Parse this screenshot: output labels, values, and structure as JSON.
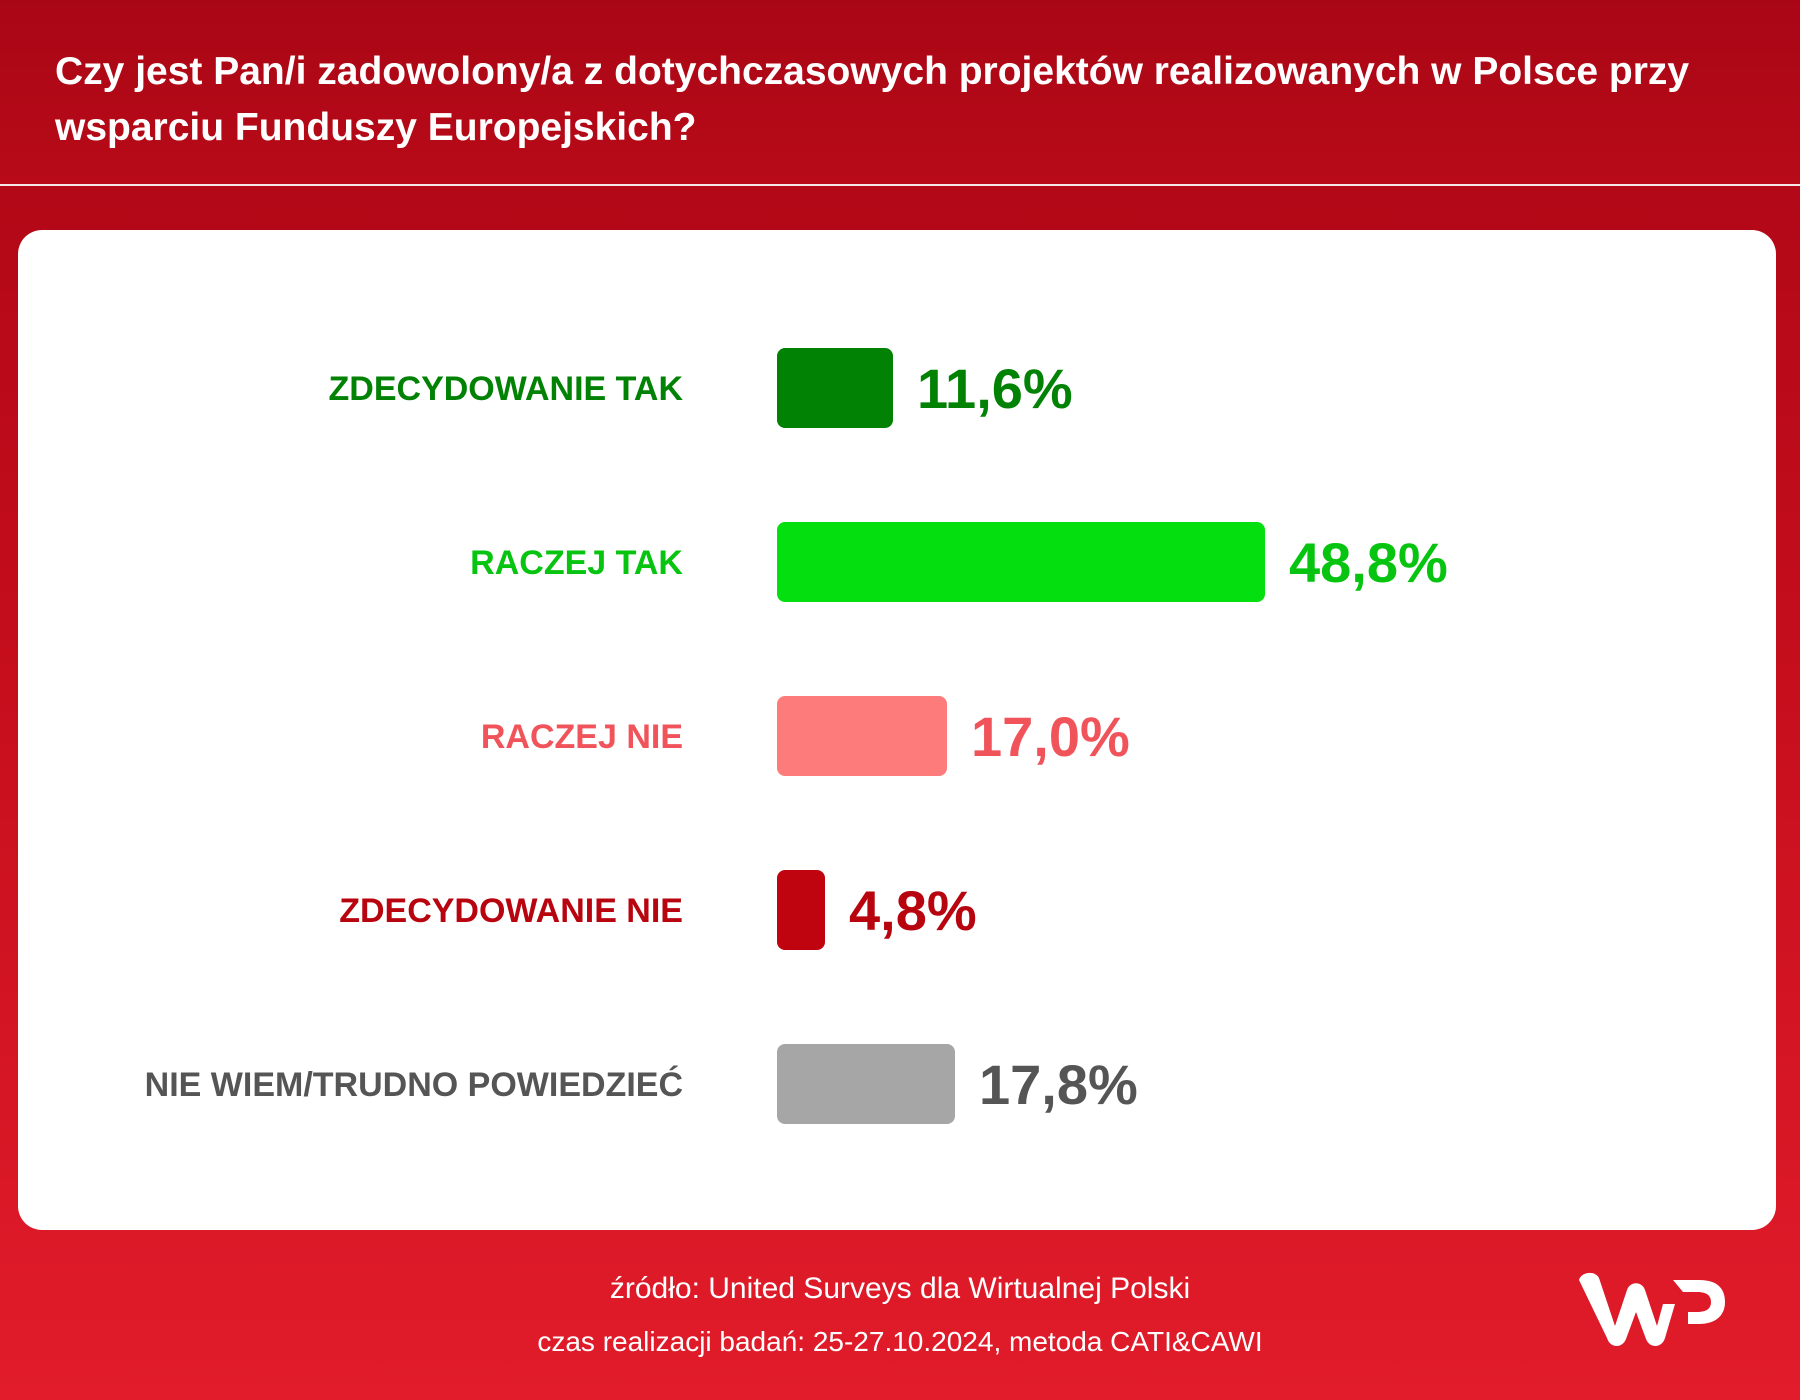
{
  "header": {
    "title": "Czy jest Pan/i zadowolony/a z dotychczasowych projektów realizowanych w Polsce przy wsparciu Funduszy Europejskich?"
  },
  "chart_data": {
    "type": "bar",
    "orientation": "horizontal",
    "categories": [
      "ZDECYDOWANIE TAK",
      "RACZEJ TAK",
      "RACZEJ NIE",
      "ZDECYDOWANIE NIE",
      "NIE WIEM/TRUDNO POWIEDZIEĆ"
    ],
    "values": [
      11.6,
      48.8,
      17.0,
      4.8,
      17.8
    ],
    "value_labels": [
      "11,6%",
      "48,8%",
      "17,0%",
      "4,8%",
      "17,8%"
    ],
    "bar_colors": [
      "#028204",
      "#04e00f",
      "#fd7c7b",
      "#bf0410",
      "#a6a6a6"
    ],
    "label_colors": [
      "#028204",
      "#06c40f",
      "#f0545a",
      "#b8040f",
      "#555555"
    ],
    "xlim": [
      0,
      100
    ],
    "grid": false,
    "legend": "none"
  },
  "footer": {
    "source": "źródło: United Surveys dla Wirtualnej Polski",
    "time": "czas realizacji badań: 25-27.10.2024, metoda CATI&CAWI"
  },
  "logo": {
    "text": "WP",
    "color": "#ffffff"
  }
}
